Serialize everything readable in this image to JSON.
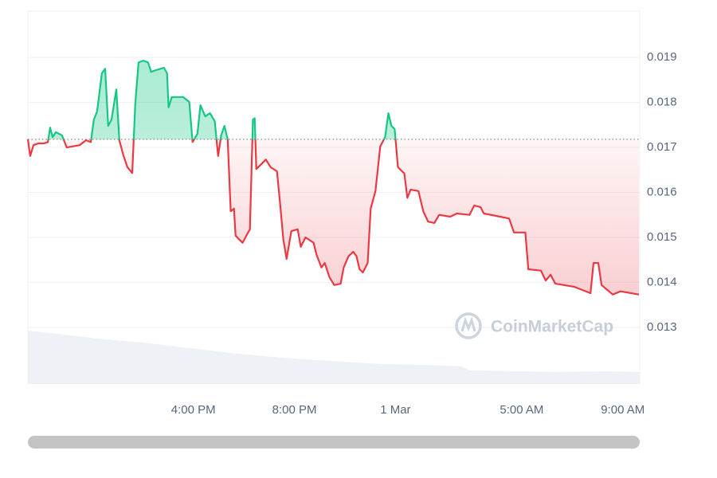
{
  "chart_data": {
    "type": "line",
    "watermark": "CoinMarketCap",
    "x": [
      9.45,
      9.54,
      9.67,
      9.86,
      10.08,
      10.24,
      10.33,
      10.43,
      10.55,
      10.8,
      10.99,
      11.5,
      11.75,
      11.94,
      12.06,
      12.19,
      12.38,
      12.51,
      12.63,
      12.76,
      12.95,
      13.07,
      13.23,
      13.39,
      13.58,
      13.7,
      13.83,
      14.02,
      14.21,
      14.33,
      14.52,
      14.84,
      14.96,
      15.02,
      15.15,
      15.59,
      15.84,
      15.97,
      16.16,
      16.28,
      16.47,
      16.66,
      16.85,
      16.98,
      17.1,
      17.23,
      17.36,
      17.48,
      17.61,
      17.67,
      17.8,
      17.95,
      18.11,
      18.24,
      18.36,
      18.43,
      18.49,
      18.62,
      18.87,
      19.06,
      19.31,
      19.44,
      19.56,
      19.69,
      19.88,
      20.13,
      20.25,
      20.44,
      20.76,
      20.88,
      21.07,
      21.2,
      21.39,
      21.58,
      21.83,
      21.95,
      22.14,
      22.33,
      22.46,
      22.58,
      22.71,
      22.9,
      23.02,
      23.21,
      23.4,
      23.59,
      23.72,
      23.84,
      23.97,
      24.1,
      24.35,
      24.47,
      24.6,
      24.91,
      25.1,
      25.29,
      25.54,
      25.73,
      26.17,
      26.43,
      26.93,
      27.12,
      27.37,
      27.5,
      28.5,
      28.69,
      29.14,
      29.26,
      29.76,
      29.95,
      30.14,
      30.33,
      31.09,
      31.72,
      31.84,
      32.03,
      32.16,
      32.6,
      32.91,
      33.64
    ],
    "values": [
      0.01718,
      0.01681,
      0.01705,
      0.01709,
      0.01709,
      0.01712,
      0.01744,
      0.01723,
      0.01734,
      0.01727,
      0.017,
      0.01705,
      0.01716,
      0.01712,
      0.01762,
      0.0178,
      0.01865,
      0.01875,
      0.01748,
      0.01762,
      0.01829,
      0.01716,
      0.01682,
      0.01656,
      0.01643,
      0.01797,
      0.01889,
      0.01893,
      0.01889,
      0.01868,
      0.01872,
      0.01877,
      0.01865,
      0.01789,
      0.01812,
      0.01812,
      0.01801,
      0.01712,
      0.0173,
      0.01794,
      0.01769,
      0.01776,
      0.01758,
      0.01681,
      0.01727,
      0.01748,
      0.01718,
      0.01558,
      0.01564,
      0.01504,
      0.01496,
      0.01488,
      0.01505,
      0.01518,
      0.01762,
      0.01765,
      0.01652,
      0.01659,
      0.01673,
      0.01656,
      0.01647,
      0.01571,
      0.01496,
      0.01452,
      0.01514,
      0.01518,
      0.01479,
      0.015,
      0.01488,
      0.01461,
      0.01433,
      0.01443,
      0.01411,
      0.01394,
      0.01397,
      0.01433,
      0.01458,
      0.01468,
      0.01458,
      0.01429,
      0.01422,
      0.01443,
      0.01564,
      0.01603,
      0.01702,
      0.01723,
      0.01776,
      0.01748,
      0.01741,
      0.01656,
      0.01642,
      0.01588,
      0.01606,
      0.01603,
      0.01558,
      0.01535,
      0.01532,
      0.0155,
      0.01546,
      0.01553,
      0.0155,
      0.01571,
      0.01567,
      0.01553,
      0.01542,
      0.01511,
      0.01511,
      0.01429,
      0.01426,
      0.01404,
      0.01417,
      0.01397,
      0.0139,
      0.01376,
      0.01443,
      0.01443,
      0.01394,
      0.01373,
      0.0138,
      0.01373
    ],
    "up_color": "#16c784",
    "down_color": "#ea3943",
    "xlim": [
      9.45,
      33.67
    ],
    "xticks": [
      {
        "value": 16,
        "label": "4:00 PM"
      },
      {
        "value": 20,
        "label": "8:00 PM"
      },
      {
        "value": 24,
        "label": "1 Mar"
      },
      {
        "value": 29,
        "label": "5:00 AM"
      },
      {
        "value": 33,
        "label": "9:00 AM"
      }
    ],
    "ylim": [
      0.01174,
      0.02003
    ],
    "yticks": [
      0.013,
      0.014,
      0.015,
      0.016,
      0.017,
      0.018,
      0.019
    ],
    "grid": true
  }
}
